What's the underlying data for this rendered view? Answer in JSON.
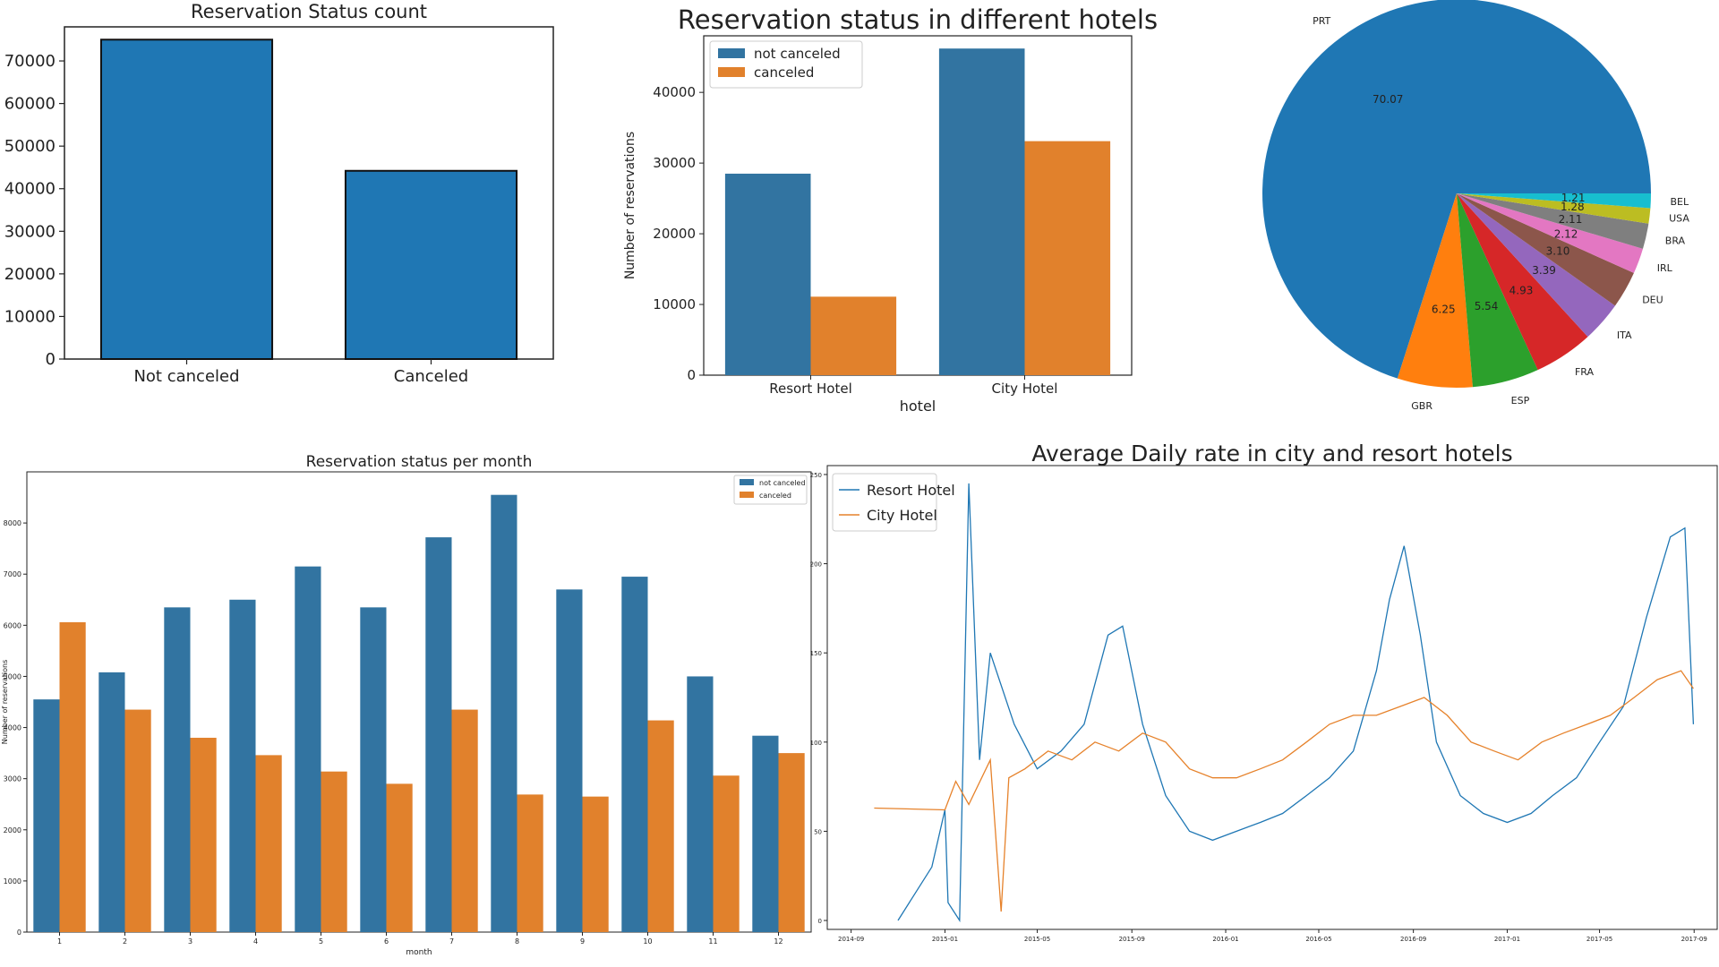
{
  "colors": {
    "blue": "#1f77b4",
    "orange": "#e6822b",
    "blue_dark": "#3274a1",
    "orange_sb": "#e1812c"
  },
  "chart_data": [
    {
      "id": "status_count",
      "type": "bar",
      "title": "Reservation Status count",
      "categories": [
        "Not canceled",
        "Canceled"
      ],
      "values": [
        75000,
        44200
      ],
      "ylim": [
        0,
        78000
      ],
      "yticks": [
        0,
        10000,
        20000,
        30000,
        40000,
        50000,
        60000,
        70000
      ]
    },
    {
      "id": "status_hotels",
      "type": "bar",
      "title": "Reservation status in different hotels",
      "xlabel": "hotel",
      "ylabel": "Number of reservations",
      "categories": [
        "Resort Hotel",
        "City Hotel"
      ],
      "series": [
        {
          "name": "not canceled",
          "values": [
            28500,
            46200
          ]
        },
        {
          "name": "canceled",
          "values": [
            11100,
            33100
          ]
        }
      ],
      "ylim": [
        0,
        48000
      ],
      "yticks": [
        0,
        10000,
        20000,
        30000,
        40000
      ],
      "legend": "top-left"
    },
    {
      "id": "country_pie",
      "type": "pie",
      "labels": [
        "PRT",
        "GBR",
        "ESP",
        "FRA",
        "ITA",
        "DEU",
        "IRL",
        "BRA",
        "USA",
        "BEL"
      ],
      "values": [
        70.07,
        6.25,
        5.54,
        4.93,
        3.39,
        3.1,
        2.12,
        2.11,
        1.28,
        1.21
      ],
      "value_labels": [
        "70.07",
        "6.25",
        "5.54",
        "4.93",
        "3.39",
        "3.10",
        "2.12",
        "2.11",
        "1.28",
        "1.21"
      ],
      "colors": [
        "#1f77b4",
        "#ff7f0e",
        "#2ca02c",
        "#d62728",
        "#9467bd",
        "#8c564b",
        "#e377c2",
        "#7f7f7f",
        "#bcbd22",
        "#17becf"
      ]
    },
    {
      "id": "status_month",
      "type": "bar",
      "title": "Reservation status per month",
      "xlabel": "month",
      "ylabel": "Number of reservations",
      "categories": [
        "1",
        "2",
        "3",
        "4",
        "5",
        "6",
        "7",
        "8",
        "9",
        "10",
        "11",
        "12"
      ],
      "series": [
        {
          "name": "not canceled",
          "values": [
            4550,
            5080,
            6350,
            6500,
            7150,
            6350,
            7720,
            8550,
            6700,
            6950,
            5000,
            3840
          ]
        },
        {
          "name": "canceled",
          "values": [
            6060,
            4350,
            3800,
            3460,
            3140,
            2900,
            4350,
            2690,
            2650,
            4140,
            3060,
            3500
          ]
        }
      ],
      "ylim": [
        0,
        9000
      ],
      "yticks": [
        0,
        1000,
        2000,
        3000,
        4000,
        5000,
        6000,
        7000,
        8000
      ],
      "legend": "top-right"
    },
    {
      "id": "adr_line",
      "type": "line",
      "title": "Average Daily rate in city and resort hotels",
      "xticks": [
        "2014-09",
        "2015-01",
        "2015-05",
        "2015-09",
        "2016-01",
        "2016-05",
        "2016-09",
        "2017-01",
        "2017-05",
        "2017-09"
      ],
      "yticks": [
        0,
        50,
        100,
        150,
        200,
        250
      ],
      "ylim": [
        -5,
        255
      ],
      "legend": "top-left",
      "series": [
        {
          "name": "Resort Hotel",
          "x": [
            "2014-11",
            "2014-12-15",
            "2015-01-01",
            "2015-01-05",
            "2015-01-20",
            "2015-02-01",
            "2015-02-15",
            "2015-03-01",
            "2015-04-01",
            "2015-05-01",
            "2015-06-01",
            "2015-07-01",
            "2015-08-01",
            "2015-08-20",
            "2015-09-15",
            "2015-10-15",
            "2015-11-15",
            "2015-12-15",
            "2016-01-15",
            "2016-02-15",
            "2016-03-15",
            "2016-04-15",
            "2016-05-15",
            "2016-06-15",
            "2016-07-15",
            "2016-08-01",
            "2016-08-20",
            "2016-09-10",
            "2016-10-01",
            "2016-11-01",
            "2016-12-01",
            "2017-01-01",
            "2017-02-01",
            "2017-03-01",
            "2017-04-01",
            "2017-05-01",
            "2017-06-01",
            "2017-07-01",
            "2017-08-01",
            "2017-08-20",
            "2017-08-31"
          ],
          "y": [
            0,
            30,
            62,
            10,
            0,
            245,
            90,
            150,
            110,
            85,
            95,
            110,
            160,
            165,
            110,
            70,
            50,
            45,
            50,
            55,
            60,
            70,
            80,
            95,
            140,
            180,
            210,
            160,
            100,
            70,
            60,
            55,
            60,
            70,
            80,
            100,
            120,
            170,
            215,
            220,
            110
          ]
        },
        {
          "name": "City Hotel",
          "x": [
            "2014-10",
            "2015-01-01",
            "2015-01-15",
            "2015-02-01",
            "2015-03-01",
            "2015-03-15",
            "2015-03-25",
            "2015-04-15",
            "2015-05-15",
            "2015-06-15",
            "2015-07-15",
            "2015-08-15",
            "2015-09-15",
            "2015-10-15",
            "2015-11-15",
            "2015-12-15",
            "2016-01-15",
            "2016-02-15",
            "2016-03-15",
            "2016-04-15",
            "2016-05-15",
            "2016-06-15",
            "2016-07-15",
            "2016-08-15",
            "2016-09-15",
            "2016-10-15",
            "2016-11-15",
            "2016-12-15",
            "2017-01-15",
            "2017-02-15",
            "2017-03-15",
            "2017-04-15",
            "2017-05-15",
            "2017-06-15",
            "2017-07-15",
            "2017-08-15",
            "2017-08-31"
          ],
          "y": [
            63,
            62,
            78,
            65,
            90,
            5,
            80,
            85,
            95,
            90,
            100,
            95,
            105,
            100,
            85,
            80,
            80,
            85,
            90,
            100,
            110,
            115,
            115,
            120,
            125,
            115,
            100,
            95,
            90,
            100,
            105,
            110,
            115,
            125,
            135,
            140,
            130
          ]
        }
      ]
    }
  ]
}
